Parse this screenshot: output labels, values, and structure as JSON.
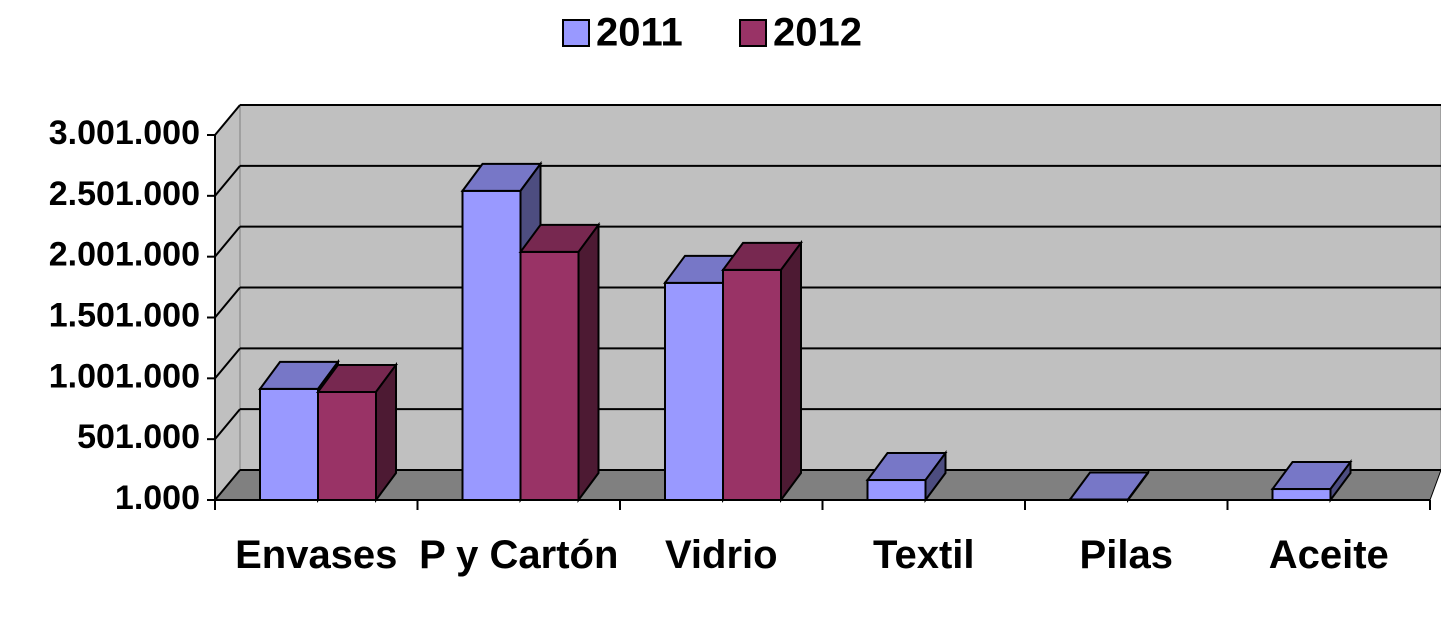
{
  "chart_data": {
    "type": "bar3d",
    "categories": [
      "Envases",
      "P y Cartón",
      "Vidrio",
      "Textil",
      "Pilas",
      "Aceite"
    ],
    "series": [
      {
        "name": "2011",
        "color": "#9999ff",
        "values": [
          914000,
          2542000,
          1786000,
          165000,
          5000,
          91000
        ]
      },
      {
        "name": "2012",
        "color": "#993366",
        "values": [
          889000,
          2040000,
          1892000,
          null,
          null,
          null
        ]
      }
    ],
    "ylim": [
      1000,
      3001000
    ],
    "yticks": [
      {
        "value": 1000,
        "label": "1.000"
      },
      {
        "value": 501000,
        "label": "501.000"
      },
      {
        "value": 1001000,
        "label": "1.001.000"
      },
      {
        "value": 1501000,
        "label": "1.501.000"
      },
      {
        "value": 2001000,
        "label": "2.001.000"
      },
      {
        "value": 2501000,
        "label": "2.501.000"
      },
      {
        "value": 3001000,
        "label": "3.001.000"
      }
    ],
    "grid": true,
    "legend": "top"
  }
}
